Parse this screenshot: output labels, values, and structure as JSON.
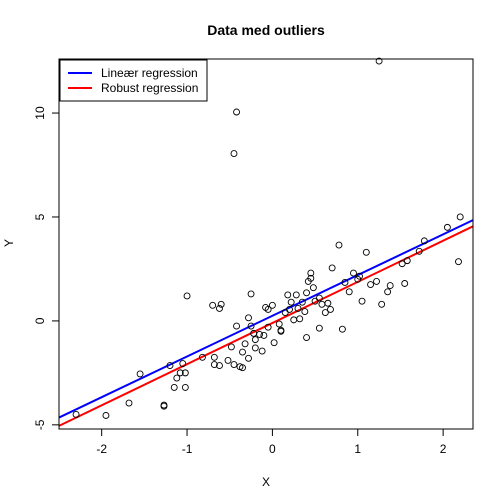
{
  "chart_data": {
    "type": "scatter",
    "title": "Data med outliers",
    "xlabel": "X",
    "ylabel": "Y",
    "xlim": [
      -2.5,
      2.35
    ],
    "ylim": [
      -5.2,
      12.6
    ],
    "x_ticks": [
      -2,
      -1,
      0,
      1,
      2
    ],
    "y_ticks": [
      -5,
      0,
      5,
      10
    ],
    "grid": false,
    "legend_position": "top-left",
    "legend": [
      {
        "label": "Lineær regression",
        "color": "#0000ff"
      },
      {
        "label": "Robust regression",
        "color": "#ff0000"
      }
    ],
    "lines": [
      {
        "name": "Lineær regression",
        "color": "#0000ff",
        "x": [
          -2.5,
          2.35
        ],
        "y": [
          -4.65,
          4.85
        ]
      },
      {
        "name": "Robust regression",
        "color": "#ff0000",
        "x": [
          -2.5,
          2.35
        ],
        "y": [
          -5.05,
          4.55
        ]
      }
    ],
    "points": [
      [
        -2.3,
        -4.5
      ],
      [
        -1.95,
        -4.55
      ],
      [
        -1.68,
        -3.95
      ],
      [
        -1.55,
        -2.55
      ],
      [
        -1.27,
        -4.05
      ],
      [
        -1.27,
        -4.1
      ],
      [
        -1.2,
        -2.15
      ],
      [
        -1.12,
        -2.75
      ],
      [
        -1.08,
        -2.5
      ],
      [
        -1.05,
        -2.05
      ],
      [
        -1.02,
        -2.5
      ],
      [
        -1.02,
        -3.2
      ],
      [
        -1.0,
        1.2
      ],
      [
        -1.15,
        -3.2
      ],
      [
        -0.82,
        -1.75
      ],
      [
        -0.7,
        0.75
      ],
      [
        -0.62,
        0.6
      ],
      [
        -0.6,
        0.8
      ],
      [
        -0.68,
        -1.75
      ],
      [
        -0.68,
        -2.1
      ],
      [
        -0.62,
        -2.15
      ],
      [
        -0.52,
        -1.9
      ],
      [
        -0.48,
        -1.25
      ],
      [
        -0.45,
        -2.1
      ],
      [
        -0.42,
        -0.25
      ],
      [
        -0.38,
        -2.2
      ],
      [
        -0.35,
        -2.25
      ],
      [
        -0.35,
        -1.5
      ],
      [
        -0.32,
        -1.1
      ],
      [
        -0.28,
        0.15
      ],
      [
        -0.28,
        -1.8
      ],
      [
        -0.25,
        -0.25
      ],
      [
        -0.22,
        -0.6
      ],
      [
        -0.2,
        -0.9
      ],
      [
        -0.2,
        -1.3
      ],
      [
        -0.15,
        -0.65
      ],
      [
        -0.1,
        -0.7
      ],
      [
        -0.25,
        1.3
      ],
      [
        -0.12,
        -1.45
      ],
      [
        -0.05,
        0.55
      ],
      [
        0.0,
        0.75
      ],
      [
        0.02,
        -1.05
      ],
      [
        0.08,
        -0.15
      ],
      [
        0.1,
        -0.45
      ],
      [
        0.15,
        0.4
      ],
      [
        0.18,
        1.25
      ],
      [
        0.22,
        0.9
      ],
      [
        0.25,
        0.05
      ],
      [
        0.28,
        1.25
      ],
      [
        0.3,
        0.6
      ],
      [
        0.35,
        0.9
      ],
      [
        0.38,
        0.45
      ],
      [
        0.4,
        1.35
      ],
      [
        0.42,
        1.9
      ],
      [
        0.45,
        2.05
      ],
      [
        0.45,
        2.3
      ],
      [
        0.48,
        1.6
      ],
      [
        0.5,
        0.95
      ],
      [
        0.55,
        1.1
      ],
      [
        0.58,
        0.8
      ],
      [
        0.62,
        0.4
      ],
      [
        0.65,
        0.85
      ],
      [
        0.68,
        0.55
      ],
      [
        0.7,
        2.55
      ],
      [
        0.78,
        3.65
      ],
      [
        0.82,
        -0.4
      ],
      [
        0.85,
        1.85
      ],
      [
        0.9,
        1.4
      ],
      [
        0.95,
        2.3
      ],
      [
        1.0,
        2.0
      ],
      [
        1.02,
        2.15
      ],
      [
        1.05,
        0.95
      ],
      [
        1.1,
        3.3
      ],
      [
        1.15,
        1.75
      ],
      [
        1.22,
        1.9
      ],
      [
        1.28,
        0.8
      ],
      [
        1.35,
        1.4
      ],
      [
        1.38,
        1.7
      ],
      [
        1.52,
        2.75
      ],
      [
        1.55,
        1.8
      ],
      [
        1.58,
        2.9
      ],
      [
        1.72,
        3.35
      ],
      [
        1.78,
        3.85
      ],
      [
        2.05,
        4.5
      ],
      [
        2.18,
        2.85
      ],
      [
        2.2,
        5.0
      ],
      [
        0.1,
        -0.5
      ],
      [
        -0.05,
        -0.3
      ],
      [
        0.55,
        -0.35
      ],
      [
        0.4,
        -0.8
      ],
      [
        -0.45,
        8.05
      ],
      [
        -0.42,
        10.05
      ],
      [
        1.25,
        12.5
      ],
      [
        -0.08,
        0.65
      ],
      [
        0.2,
        0.55
      ],
      [
        0.32,
        0.1
      ]
    ]
  }
}
